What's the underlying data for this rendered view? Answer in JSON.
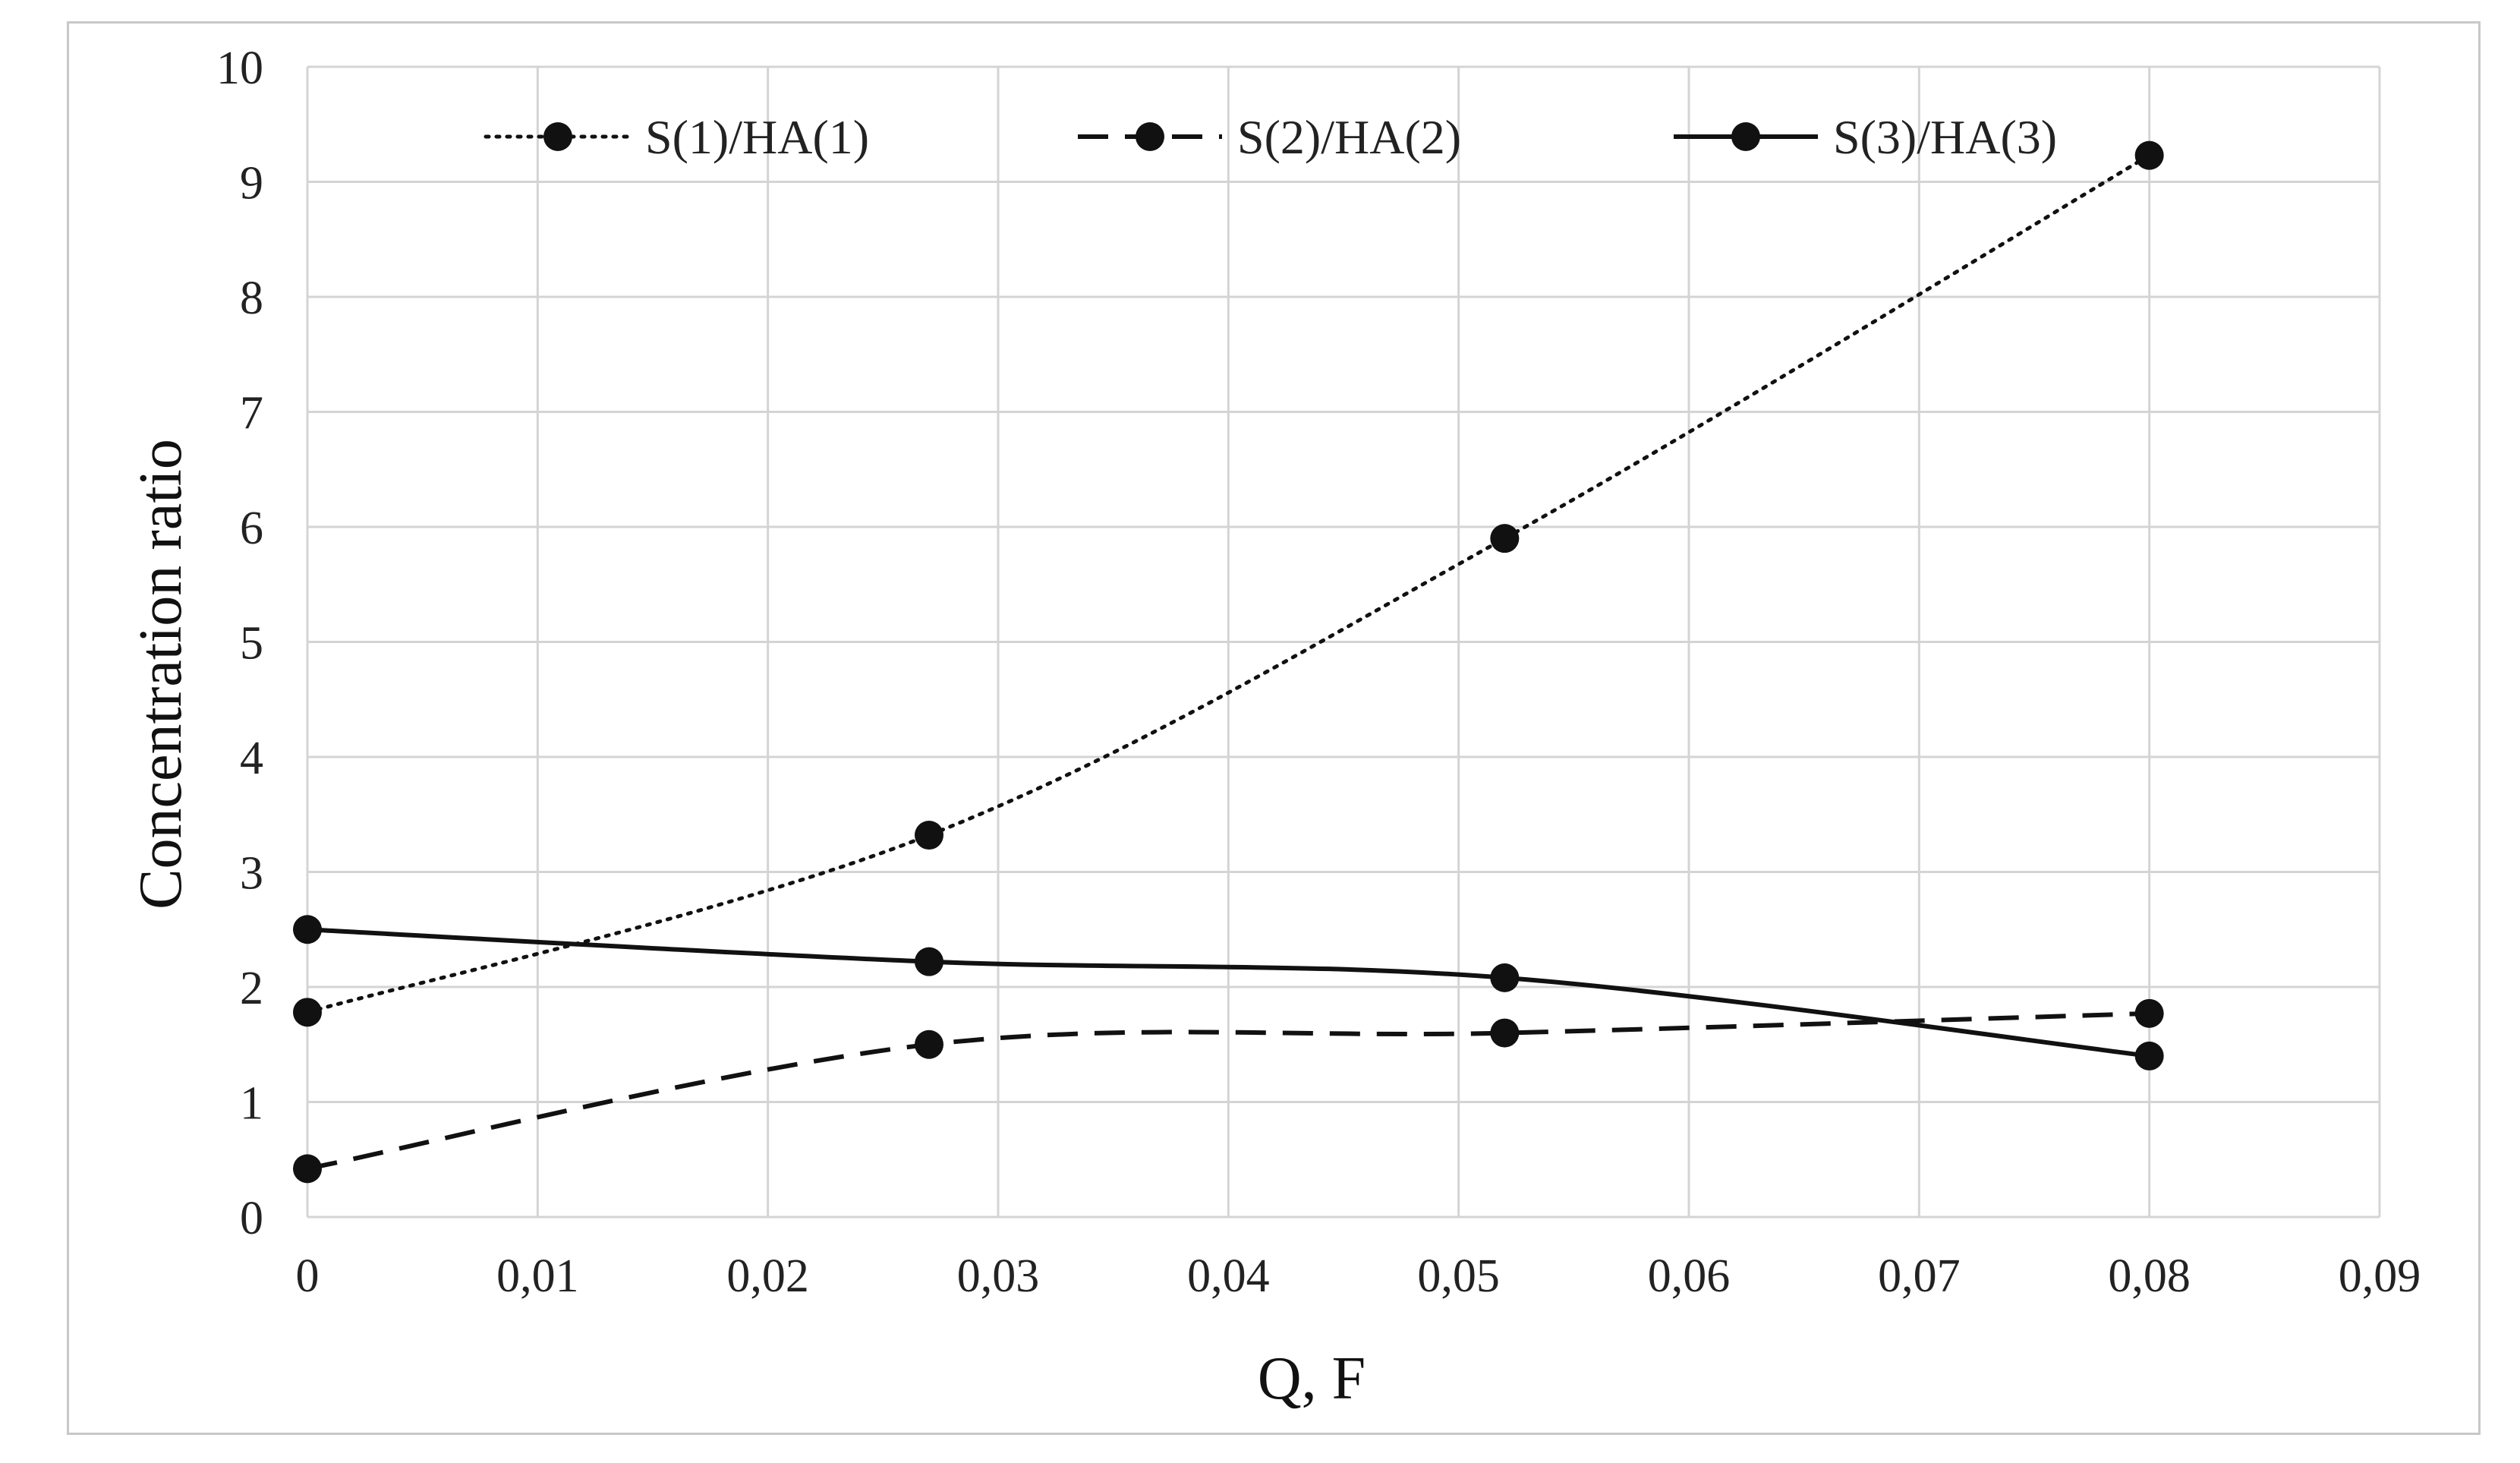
{
  "chart_data": {
    "type": "line",
    "title": "",
    "xlabel": "Q, F",
    "ylabel": "Concentration ratio",
    "xlim": [
      0,
      0.09
    ],
    "ylim": [
      0,
      10
    ],
    "x_ticks": [
      "0",
      "0,01",
      "0,02",
      "0,03",
      "0,04",
      "0,05",
      "0,06",
      "0,07",
      "0,08",
      "0,09"
    ],
    "y_ticks": [
      "0",
      "1",
      "2",
      "3",
      "4",
      "5",
      "6",
      "7",
      "8",
      "9",
      "10"
    ],
    "grid": true,
    "legend_position": "top",
    "series": [
      {
        "name": "S(1)/HA(1)",
        "style": "dotted",
        "color": "#111111",
        "x": [
          0,
          0.027,
          0.052,
          0.08
        ],
        "y": [
          1.78,
          3.32,
          5.9,
          9.23
        ]
      },
      {
        "name": "S(2)/HA(2)",
        "style": "dashed",
        "color": "#111111",
        "x": [
          0,
          0.027,
          0.052,
          0.08
        ],
        "y": [
          0.42,
          1.5,
          1.6,
          1.77
        ]
      },
      {
        "name": "S(3)/HA(3)",
        "style": "solid",
        "color": "#111111",
        "x": [
          0,
          0.027,
          0.052,
          0.08
        ],
        "y": [
          2.5,
          2.22,
          2.08,
          1.4
        ]
      }
    ]
  }
}
